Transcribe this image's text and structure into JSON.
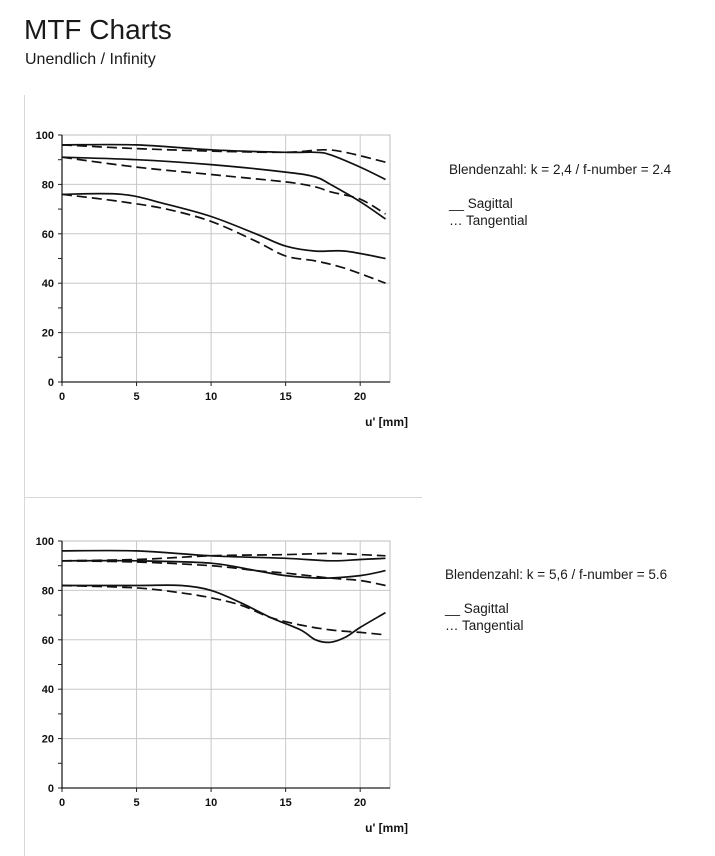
{
  "header": {
    "title": "MTF Charts",
    "subtitle": "Unendlich / Infinity"
  },
  "chart_data": [
    {
      "type": "line",
      "xlabel": "u' [mm]",
      "ylabel": "",
      "xlim": [
        0,
        22
      ],
      "ylim": [
        0,
        100
      ],
      "xticks": [
        0,
        5,
        10,
        15,
        20
      ],
      "yticks": [
        0,
        20,
        40,
        60,
        80,
        100
      ],
      "grid": true,
      "legend": {
        "fnumber": "Blendenzahl: k = 2,4 / f-number = 2.4",
        "sagittal": "__ Sagittal",
        "tangential": "… Tangential"
      },
      "series": [
        {
          "style": "solid",
          "x": [
            0,
            5,
            10,
            15,
            17,
            18,
            20,
            21.7
          ],
          "y": [
            96,
            96,
            94,
            93,
            93,
            92,
            87,
            82
          ]
        },
        {
          "style": "dashed",
          "x": [
            0,
            5,
            10,
            15,
            17.5,
            19,
            21.7
          ],
          "y": [
            96,
            94.5,
            93.5,
            93,
            94,
            93,
            89
          ]
        },
        {
          "style": "solid",
          "x": [
            0,
            5,
            10,
            15,
            17,
            18,
            20,
            21.7
          ],
          "y": [
            91,
            90,
            88,
            85,
            83,
            80,
            73,
            66
          ]
        },
        {
          "style": "dashed",
          "x": [
            0,
            5,
            10,
            15,
            17,
            18,
            20,
            21.7
          ],
          "y": [
            91,
            87,
            84,
            81,
            79,
            77,
            74,
            68
          ]
        },
        {
          "style": "solid",
          "x": [
            0,
            4,
            7,
            10,
            13,
            15,
            17,
            19,
            21.7
          ],
          "y": [
            76,
            76,
            72,
            67,
            60,
            55,
            53,
            53,
            50
          ]
        },
        {
          "style": "dashed",
          "x": [
            0,
            4,
            7,
            10,
            13,
            15,
            17,
            19,
            21.7
          ],
          "y": [
            76,
            73,
            70,
            65,
            57,
            51,
            49,
            46,
            40
          ]
        }
      ]
    },
    {
      "type": "line",
      "xlabel": "u' [mm]",
      "ylabel": "",
      "xlim": [
        0,
        22
      ],
      "ylim": [
        0,
        100
      ],
      "xticks": [
        0,
        5,
        10,
        15,
        20
      ],
      "yticks": [
        0,
        20,
        40,
        60,
        80,
        100
      ],
      "grid": true,
      "legend": {
        "fnumber": "Blendenzahl: k = 5,6 / f-number = 5.6",
        "sagittal": "__ Sagittal",
        "tangential": "… Tangential"
      },
      "series": [
        {
          "style": "solid",
          "x": [
            0,
            5,
            10,
            15,
            18,
            20,
            21.7
          ],
          "y": [
            96,
            96,
            94,
            93,
            92,
            92.5,
            93
          ]
        },
        {
          "style": "dashed",
          "x": [
            0,
            5,
            10,
            15,
            18,
            20,
            21.7
          ],
          "y": [
            92,
            92.5,
            94,
            94.5,
            95,
            94.5,
            94
          ]
        },
        {
          "style": "solid",
          "x": [
            0,
            5,
            10,
            13,
            15,
            17.5,
            20,
            21.7
          ],
          "y": [
            92,
            92,
            91,
            88,
            86,
            85,
            86,
            88
          ]
        },
        {
          "style": "dashed",
          "x": [
            0,
            5,
            10,
            13,
            15,
            18,
            20,
            21.7
          ],
          "y": [
            92,
            91.5,
            90,
            88,
            87,
            85,
            84,
            82
          ]
        },
        {
          "style": "solid",
          "x": [
            0,
            5,
            8,
            10,
            12,
            14,
            16,
            17,
            18,
            19,
            20,
            21.7
          ],
          "y": [
            82,
            82,
            82,
            80,
            75,
            69,
            64,
            60,
            59,
            61,
            65,
            71
          ]
        },
        {
          "style": "dashed",
          "x": [
            0,
            5,
            8,
            10,
            12,
            14,
            16,
            18,
            20,
            21.7
          ],
          "y": [
            82,
            81,
            79,
            77,
            74,
            69,
            66,
            64,
            63,
            62
          ]
        }
      ]
    }
  ]
}
